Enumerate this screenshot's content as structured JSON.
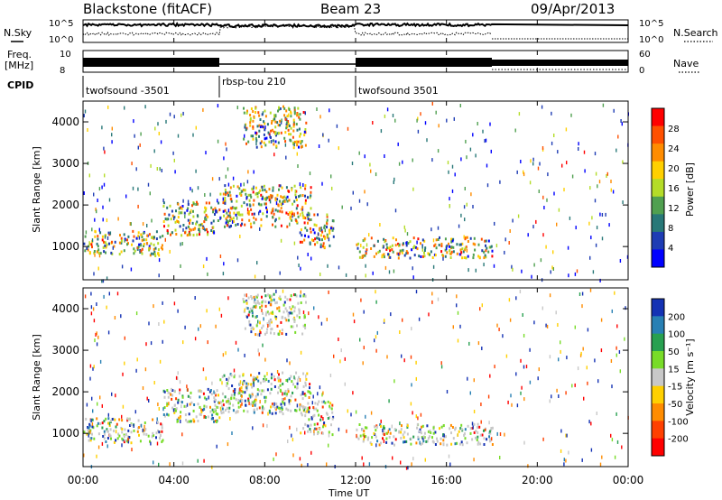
{
  "header": {
    "station": "Blackstone (fitACF)",
    "beam": "Beam 23",
    "date": "09/Apr/2013"
  },
  "summary_panels": {
    "nsky_label": "N.Sky",
    "nsky_ticks": [
      "10^5",
      "10^0"
    ],
    "nsearch_label": "N.Search",
    "nsearch_ticks": [
      "10^5",
      "10^0"
    ],
    "freq_label": "Freq.",
    "freq_unit": "[MHz]",
    "freq_ticks": [
      "10",
      "8"
    ],
    "nave_label": "Nave",
    "nave_ticks": [
      "60",
      "0"
    ],
    "cpid_label": "CPID"
  },
  "chart_data": {
    "type": "heatmap",
    "x_label": "Time UT",
    "x_ticks": [
      "00:00",
      "04:00",
      "08:00",
      "12:00",
      "16:00",
      "20:00",
      "00:00"
    ],
    "x_range_hours": [
      0,
      24
    ],
    "y_label": "Slant Range [km]",
    "y_ticks": [
      1000,
      2000,
      3000,
      4000
    ],
    "y_range_km": [
      200,
      4500
    ],
    "cpid_segments": [
      {
        "name": "twofsound -3501",
        "start_hour": 0,
        "end_hour": 6
      },
      {
        "name": "rbsp-tou 210",
        "start_hour": 6,
        "end_hour": 12
      },
      {
        "name": "twofsound 3501",
        "start_hour": 12,
        "end_hour": 18
      }
    ],
    "panels": [
      {
        "name": "power",
        "colorbar_label": "Power [dB]",
        "colorbar_ticks": [
          "28",
          "24",
          "20",
          "16",
          "12",
          "8",
          "4"
        ],
        "colors": [
          "#ff0000",
          "#ff5000",
          "#ff8c00",
          "#ffd000",
          "#b4dc28",
          "#50a050",
          "#287878",
          "#1e3cb4",
          "#0000ff"
        ]
      },
      {
        "name": "velocity",
        "colorbar_label": "Velocity [m s⁻¹]",
        "colorbar_ticks": [
          "200",
          "100",
          "50",
          "15",
          "-15",
          "-50",
          "-100",
          "-200"
        ],
        "colors": [
          "#1432b4",
          "#2880b4",
          "#28a050",
          "#78dc28",
          "#c8c8c8",
          "#ffd000",
          "#ff8c00",
          "#ff4000",
          "#ff0000"
        ]
      }
    ],
    "scatter_bands": [
      {
        "start_hour": 0,
        "end_hour": 3.5,
        "range_low_km": 800,
        "range_high_km": 1400
      },
      {
        "start_hour": 3.5,
        "end_hour": 6,
        "range_low_km": 1300,
        "range_high_km": 2100
      },
      {
        "start_hour": 6,
        "end_hour": 10,
        "range_low_km": 1500,
        "range_high_km": 2500
      },
      {
        "start_hour": 7,
        "end_hour": 9.8,
        "range_low_km": 3400,
        "range_high_km": 4400
      },
      {
        "start_hour": 9.5,
        "end_hour": 11,
        "range_low_km": 1000,
        "range_high_km": 1800
      },
      {
        "start_hour": 12,
        "end_hour": 18,
        "range_low_km": 750,
        "range_high_km": 1250
      }
    ]
  }
}
